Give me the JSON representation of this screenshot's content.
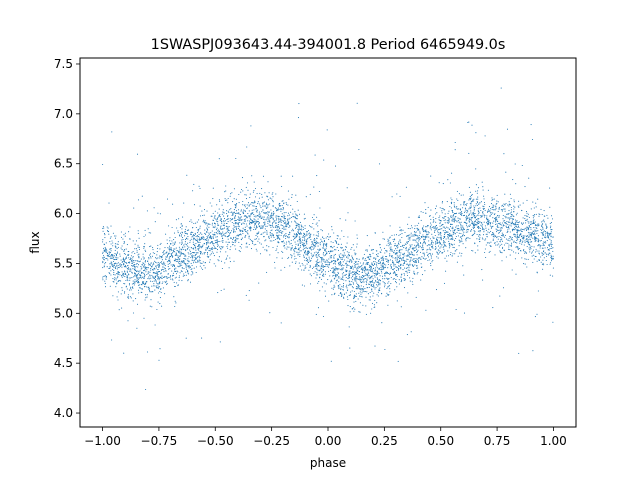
{
  "chart_data": {
    "type": "scatter",
    "title": "1SWASPJ093643.44-394001.8 Period 6465949.0s",
    "xlabel": "phase",
    "ylabel": "flux",
    "xlim": [
      -1.1,
      1.1
    ],
    "ylim": [
      3.86,
      7.56
    ],
    "xticks": [
      -1.0,
      -0.75,
      -0.5,
      -0.25,
      0.0,
      0.25,
      0.5,
      0.75,
      1.0
    ],
    "xtick_labels": [
      "−1.00",
      "−0.75",
      "−0.50",
      "−0.25",
      "0.00",
      "0.25",
      "0.50",
      "0.75",
      "1.00"
    ],
    "yticks": [
      4.0,
      4.5,
      5.0,
      5.5,
      6.0,
      6.5,
      7.0,
      7.5
    ],
    "ytick_labels": [
      "4.0",
      "4.5",
      "5.0",
      "5.5",
      "6.0",
      "6.5",
      "7.0",
      "7.5"
    ],
    "grid": false,
    "marker_color": "#1f77b4",
    "series": [
      {
        "x": [
          -1.0,
          -0.95,
          -0.9,
          -0.85,
          -0.8,
          -0.75,
          -0.7,
          -0.65,
          -0.6,
          -0.55,
          -0.5,
          -0.45,
          -0.4,
          -0.35,
          -0.3,
          -0.25,
          -0.2,
          -0.15,
          -0.1,
          -0.05,
          0.0,
          0.05,
          0.1,
          0.15,
          0.2,
          0.25,
          0.3,
          0.35,
          0.4,
          0.45,
          0.5,
          0.55,
          0.6,
          0.65,
          0.7,
          0.75,
          0.8,
          0.85,
          0.9,
          0.95,
          1.0
        ],
        "y": [
          5.6,
          5.5,
          5.48,
          5.42,
          5.4,
          5.42,
          5.5,
          5.58,
          5.65,
          5.72,
          5.8,
          5.87,
          5.9,
          5.93,
          5.95,
          5.92,
          5.88,
          5.8,
          5.7,
          5.6,
          5.52,
          5.45,
          5.4,
          5.38,
          5.4,
          5.45,
          5.52,
          5.6,
          5.68,
          5.75,
          5.82,
          5.88,
          5.92,
          5.95,
          5.93,
          5.9,
          5.88,
          5.84,
          5.8,
          5.75,
          5.7
        ]
      }
    ]
  }
}
